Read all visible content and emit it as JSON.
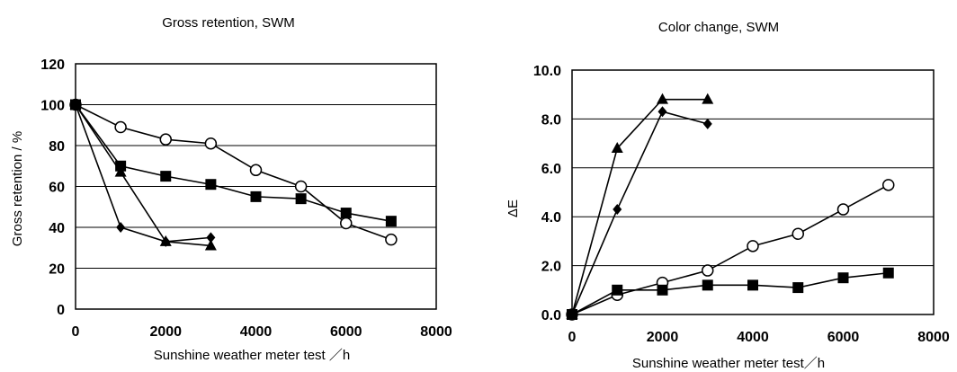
{
  "chart_data": [
    {
      "type": "line",
      "title": "Gross retention, SWM",
      "xlabel": "Sunshine weather meter test ／h",
      "ylabel": "Gross retention / %",
      "xlim": [
        0,
        8000
      ],
      "ylim": [
        0,
        120
      ],
      "xticks": [
        0,
        2000,
        4000,
        6000,
        8000
      ],
      "yticks": [
        0,
        20,
        40,
        60,
        80,
        100,
        120
      ],
      "xtick_labels": [
        "0",
        "2000",
        "4000",
        "6000",
        "8000"
      ],
      "ytick_labels": [
        "0",
        "20",
        "40",
        "60",
        "80",
        "100",
        "120"
      ],
      "grid": "horizontal",
      "legend": "none",
      "series": [
        {
          "marker": "open-circle",
          "x": [
            0,
            1000,
            2000,
            3000,
            4000,
            5000,
            6000,
            7000
          ],
          "values": [
            100,
            89,
            83,
            81,
            68,
            60,
            42,
            34
          ]
        },
        {
          "marker": "filled-square",
          "x": [
            0,
            1000,
            2000,
            3000,
            4000,
            5000,
            6000,
            7000
          ],
          "values": [
            100,
            70,
            65,
            61,
            55,
            54,
            47,
            43
          ]
        },
        {
          "marker": "filled-triangle",
          "x": [
            0,
            1000,
            2000,
            3000
          ],
          "values": [
            100,
            67,
            33,
            31
          ]
        },
        {
          "marker": "filled-diamond",
          "x": [
            0,
            1000,
            2000,
            3000
          ],
          "values": [
            100,
            40,
            33,
            35
          ]
        }
      ]
    },
    {
      "type": "line",
      "title": "Color change, SWM",
      "xlabel": "Sunshine weather meter test／h",
      "ylabel": "ΔE",
      "xlim": [
        0,
        8000
      ],
      "ylim": [
        0,
        10
      ],
      "xticks": [
        0,
        2000,
        4000,
        6000,
        8000
      ],
      "yticks": [
        0,
        2,
        4,
        6,
        8,
        10
      ],
      "xtick_labels": [
        "0",
        "2000",
        "4000",
        "6000",
        "8000"
      ],
      "ytick_labels": [
        "0.0",
        "2.0",
        "4.0",
        "6.0",
        "8.0",
        "10.0"
      ],
      "grid": "horizontal",
      "legend": "none",
      "series": [
        {
          "marker": "open-circle",
          "x": [
            0,
            1000,
            2000,
            3000,
            4000,
            5000,
            6000,
            7000
          ],
          "values": [
            0,
            0.8,
            1.3,
            1.8,
            2.8,
            3.3,
            4.3,
            5.3
          ]
        },
        {
          "marker": "filled-square",
          "x": [
            0,
            1000,
            2000,
            3000,
            4000,
            5000,
            6000,
            7000
          ],
          "values": [
            0,
            1.0,
            1.0,
            1.2,
            1.2,
            1.1,
            1.5,
            1.7
          ]
        },
        {
          "marker": "filled-triangle",
          "x": [
            0,
            1000,
            2000,
            3000
          ],
          "values": [
            0,
            6.8,
            8.8,
            8.8
          ]
        },
        {
          "marker": "filled-diamond",
          "x": [
            0,
            1000,
            2000,
            3000
          ],
          "values": [
            0,
            4.3,
            8.3,
            7.8
          ]
        }
      ]
    }
  ]
}
